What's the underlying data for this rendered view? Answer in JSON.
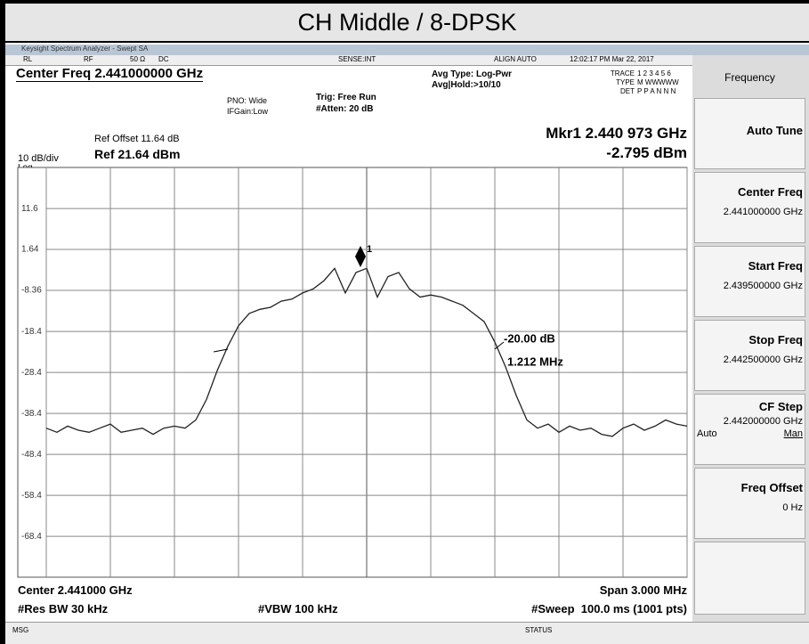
{
  "title": "CH Middle / 8-DPSK",
  "window_title": "Keysight Spectrum Analyzer - Swept SA",
  "status_line": [
    "RL",
    "RF",
    "50 Ω",
    "DC",
    "SENSE:INT",
    "ALIGN AUTO",
    "12:02:17 PM Mar 22, 2017"
  ],
  "settings": {
    "center_freq": "Center Freq 2.441000000 GHz",
    "pno": "PNO: Wide",
    "ifgain": "IFGain:Low",
    "trig": "Trig: Free Run",
    "atten": "#Atten: 20 dB",
    "avg_type": "Avg Type: Log-Pwr",
    "avg_hold": "Avg|Hold:>10/10",
    "trace": [
      "TRACE",
      "1 2 3 4 5 6"
    ],
    "type": [
      "TYPE",
      "M WWWWW"
    ],
    "det": [
      "DET",
      "P P A N N N"
    ]
  },
  "ref_offset": "Ref Offset 11.64 dB",
  "scale": "10 dB/div",
  "scale_type": "Log",
  "ref_level": "Ref 21.64 dBm",
  "marker_freq": "Mkr1 2.440 973 GHz",
  "marker_level": "-2.795 dBm",
  "chart_data": {
    "type": "line",
    "x": [
      -1.5,
      -1.45,
      -1.4,
      -1.35,
      -1.3,
      -1.25,
      -1.2,
      -1.15,
      -1.1,
      -1.05,
      -1,
      -0.95,
      -0.9,
      -0.85,
      -0.8,
      -0.75,
      -0.7,
      -0.65,
      -0.6,
      -0.55,
      -0.5,
      -0.45,
      -0.4,
      -0.35,
      -0.3,
      -0.25,
      -0.2,
      -0.15,
      -0.1,
      -0.05,
      0,
      0.05,
      0.1,
      0.15,
      0.2,
      0.25,
      0.3,
      0.35,
      0.4,
      0.45,
      0.5,
      0.55,
      0.6,
      0.65,
      0.7,
      0.75,
      0.8,
      0.85,
      0.9,
      0.95,
      1,
      1.05,
      1.1,
      1.15,
      1.2,
      1.25,
      1.3,
      1.35,
      1.4,
      1.45,
      1.5
    ],
    "series": [
      {
        "color": "#222222",
        "values": [
          -42,
          -43,
          -41.5,
          -42.5,
          -43,
          -42,
          -41,
          -43,
          -42.5,
          -42,
          -43.5,
          -42,
          -41.5,
          -42,
          -40,
          -35,
          -28,
          -22,
          -17,
          -14,
          -13,
          -12.5,
          -11,
          -10.5,
          -9,
          -8,
          -6,
          -3,
          -9,
          -4,
          -3,
          -10,
          -5,
          -4,
          -8,
          -10,
          -9.5,
          -10,
          -11,
          -12,
          -14,
          -16,
          -21,
          -27,
          -34,
          -40,
          -42,
          -41,
          -43,
          -41.5,
          -42.5,
          -42,
          -43.5,
          -44,
          -42,
          -41,
          -42.5,
          -41.5,
          -40,
          -41,
          -41.5
        ]
      }
    ],
    "xlim": [
      -1.5,
      1.5
    ],
    "ylim": [
      -78.36,
      21.64
    ],
    "yticks": [
      11.6,
      1.64,
      -8.36,
      -18.4,
      -28.4,
      -38.4,
      -48.4,
      -58.4,
      -68.4
    ],
    "grid": true,
    "annotations": [
      "-20.00 dB",
      "1.212 MHz"
    ],
    "marker_label": "1"
  },
  "footer": {
    "center": "Center 2.441000 GHz",
    "span": "Span 3.000 MHz",
    "rbw": "#Res BW 30 kHz",
    "vbw": "#VBW 100 kHz",
    "sweep": "#Sweep  100.0 ms (1001 pts)"
  },
  "status_bar": {
    "msg": "MSG",
    "status": "STATUS"
  },
  "menu": {
    "title": "Frequency",
    "items": [
      {
        "label": "Auto Tune"
      },
      {
        "label": "Center Freq",
        "value": "2.441000000 GHz"
      },
      {
        "label": "Start Freq",
        "value": "2.439500000 GHz"
      },
      {
        "label": "Stop Freq",
        "value": "2.442500000 GHz"
      },
      {
        "label": "CF Step",
        "value": "2.442000000 GHz",
        "options": [
          "Auto",
          "Man"
        ]
      },
      {
        "label": "Freq Offset",
        "value": "0 Hz"
      }
    ]
  }
}
